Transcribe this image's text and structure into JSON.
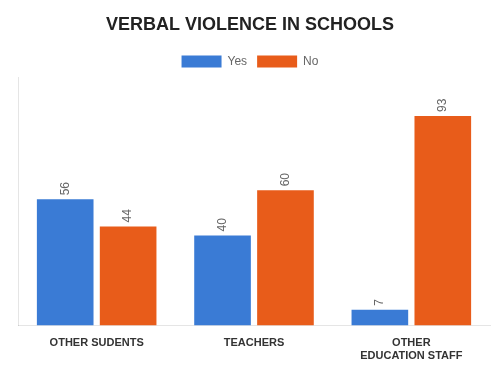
{
  "chart_data": {
    "type": "bar",
    "title": "VERBAL VIOLENCE IN SCHOOLS",
    "categories": [
      "OTHER SUDENTS",
      "TEACHERS",
      "OTHER\nEDUCATION STAFF"
    ],
    "series": [
      {
        "name": "Yes",
        "color": "#3a7bd5",
        "values": [
          56,
          40,
          7
        ]
      },
      {
        "name": "No",
        "color": "#e85c1a",
        "values": [
          44,
          60,
          93
        ]
      }
    ],
    "ylim": [
      0,
      110
    ],
    "grid": false,
    "legend": "top",
    "data_labels": true,
    "tick_labels": "x"
  }
}
